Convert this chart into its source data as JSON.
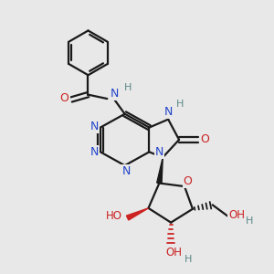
{
  "bg_color": "#e8e8e8",
  "bond_color": "#1a1a1a",
  "bond_width": 1.6,
  "N_color": "#2244cc",
  "O_color": "#cc2222",
  "C_color": "#1a1a1a",
  "H_color": "#5a8888",
  "figsize": [
    3.0,
    3.0
  ],
  "dpi": 100,
  "xlim": [
    0,
    10
  ],
  "ylim": [
    0,
    10
  ]
}
